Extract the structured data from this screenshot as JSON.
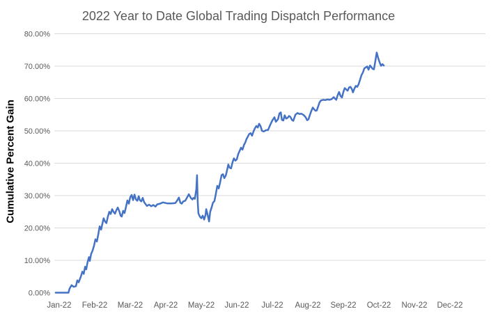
{
  "chart": {
    "title": "2022 Year to Date Global Trading Dispatch Performance",
    "y_axis_title": "Cumulative Percent Gain"
  },
  "colors": {
    "line": "#4472C4",
    "gridline": "#D9D9D9",
    "tick_text": "#595959",
    "title_text": "#595959",
    "y_title_text": "#000000",
    "background": "#FFFFFF"
  },
  "chart_data": {
    "type": "line",
    "title": "2022 Year to Date Global Trading Dispatch Performance",
    "xlabel": "",
    "ylabel": "Cumulative Percent Gain",
    "ylim": [
      0,
      80
    ],
    "y_tick_step": 10,
    "grid": "horizontal-only, no 0% baseline",
    "legend": "none",
    "x_tick_labels": [
      "Jan-22",
      "Feb-22",
      "Mar-22",
      "Apr-22",
      "May-22",
      "Jun-22",
      "Jul-22",
      "Aug-22",
      "Sep-22",
      "Oct-22",
      "Nov-22",
      "Dec-22"
    ],
    "y_tick_labels": [
      "0.00%",
      "10.00%",
      "20.00%",
      "30.00%",
      "40.00%",
      "50.00%",
      "60.00%",
      "70.00%",
      "80.00%"
    ],
    "x_unit": "months offset from Jan-22 tick",
    "y_unit": "cumulative percent gain",
    "series": [
      {
        "name": "Cumulative Percent Gain",
        "points": [
          [
            -0.1,
            0
          ],
          [
            0.26,
            0
          ],
          [
            0.29,
            1.2
          ],
          [
            0.35,
            2.3
          ],
          [
            0.41,
            1.8
          ],
          [
            0.47,
            2.0
          ],
          [
            0.51,
            3.8
          ],
          [
            0.55,
            3.2
          ],
          [
            0.61,
            5.0
          ],
          [
            0.65,
            6.5
          ],
          [
            0.69,
            5.8
          ],
          [
            0.73,
            8.0
          ],
          [
            0.76,
            7.2
          ],
          [
            0.8,
            9.5
          ],
          [
            0.84,
            11.0
          ],
          [
            0.86,
            9.8
          ],
          [
            0.9,
            12.0
          ],
          [
            0.94,
            13.0
          ],
          [
            0.98,
            14.5
          ],
          [
            1.02,
            16.5
          ],
          [
            1.06,
            15.8
          ],
          [
            1.1,
            18.0
          ],
          [
            1.14,
            20.5
          ],
          [
            1.18,
            19.5
          ],
          [
            1.22,
            21.5
          ],
          [
            1.25,
            23.0
          ],
          [
            1.29,
            22.0
          ],
          [
            1.33,
            21.5
          ],
          [
            1.37,
            23.5
          ],
          [
            1.41,
            25.0
          ],
          [
            1.45,
            24.3
          ],
          [
            1.49,
            25.8
          ],
          [
            1.53,
            25.0
          ],
          [
            1.57,
            24.4
          ],
          [
            1.61,
            25.5
          ],
          [
            1.65,
            26.3
          ],
          [
            1.69,
            25.2
          ],
          [
            1.73,
            23.8
          ],
          [
            1.76,
            23.5
          ],
          [
            1.8,
            25.3
          ],
          [
            1.84,
            24.6
          ],
          [
            1.88,
            26.5
          ],
          [
            1.92,
            28.5
          ],
          [
            1.96,
            27.5
          ],
          [
            2.0,
            29.5
          ],
          [
            2.04,
            30.2
          ],
          [
            2.08,
            28.6
          ],
          [
            2.12,
            30.3
          ],
          [
            2.16,
            28.8
          ],
          [
            2.2,
            28.4
          ],
          [
            2.24,
            29.8
          ],
          [
            2.27,
            28.6
          ],
          [
            2.31,
            28.2
          ],
          [
            2.35,
            29.3
          ],
          [
            2.39,
            28.0
          ],
          [
            2.43,
            27.4
          ],
          [
            2.47,
            26.8
          ],
          [
            2.53,
            27.2
          ],
          [
            2.59,
            26.7
          ],
          [
            2.65,
            27.1
          ],
          [
            2.71,
            26.6
          ],
          [
            2.76,
            27.3
          ],
          [
            2.84,
            27.5
          ],
          [
            2.92,
            27.9
          ],
          [
            3.04,
            27.6
          ],
          [
            3.16,
            27.6
          ],
          [
            3.27,
            27.7
          ],
          [
            3.33,
            28.6
          ],
          [
            3.37,
            29.4
          ],
          [
            3.41,
            27.8
          ],
          [
            3.45,
            27.5
          ],
          [
            3.49,
            28.2
          ],
          [
            3.55,
            28.4
          ],
          [
            3.61,
            29.6
          ],
          [
            3.65,
            30.4
          ],
          [
            3.71,
            29.2
          ],
          [
            3.75,
            28.8
          ],
          [
            3.78,
            29.3
          ],
          [
            3.82,
            29.0
          ],
          [
            3.86,
            32.0
          ],
          [
            3.88,
            36.3
          ],
          [
            3.9,
            28.0
          ],
          [
            3.92,
            24.5
          ],
          [
            3.96,
            23.5
          ],
          [
            4.0,
            23.0
          ],
          [
            4.04,
            23.8
          ],
          [
            4.08,
            22.6
          ],
          [
            4.12,
            24.0
          ],
          [
            4.14,
            25.8
          ],
          [
            4.18,
            24.0
          ],
          [
            4.22,
            22.0
          ],
          [
            4.25,
            25.0
          ],
          [
            4.29,
            26.3
          ],
          [
            4.33,
            27.8
          ],
          [
            4.37,
            28.3
          ],
          [
            4.41,
            30.5
          ],
          [
            4.45,
            33.0
          ],
          [
            4.49,
            32.2
          ],
          [
            4.53,
            34.0
          ],
          [
            4.57,
            36.3
          ],
          [
            4.61,
            36.6
          ],
          [
            4.65,
            35.4
          ],
          [
            4.69,
            36.2
          ],
          [
            4.73,
            38.0
          ],
          [
            4.76,
            39.6
          ],
          [
            4.8,
            38.6
          ],
          [
            4.84,
            38.4
          ],
          [
            4.88,
            40.3
          ],
          [
            4.92,
            41.5
          ],
          [
            4.96,
            40.8
          ],
          [
            5.0,
            41.2
          ],
          [
            5.04,
            42.8
          ],
          [
            5.08,
            43.8
          ],
          [
            5.12,
            44.8
          ],
          [
            5.16,
            44.2
          ],
          [
            5.2,
            45.6
          ],
          [
            5.24,
            46.4
          ],
          [
            5.27,
            47.4
          ],
          [
            5.31,
            48.2
          ],
          [
            5.35,
            49.0
          ],
          [
            5.39,
            49.3
          ],
          [
            5.43,
            48.5
          ],
          [
            5.47,
            49.8
          ],
          [
            5.51,
            50.8
          ],
          [
            5.55,
            51.5
          ],
          [
            5.59,
            51.0
          ],
          [
            5.63,
            52.2
          ],
          [
            5.67,
            51.4
          ],
          [
            5.71,
            50.0
          ],
          [
            5.76,
            49.8
          ],
          [
            5.82,
            50.2
          ],
          [
            5.88,
            50.3
          ],
          [
            5.94,
            51.8
          ],
          [
            6.0,
            53.2
          ],
          [
            6.06,
            54.2
          ],
          [
            6.1,
            52.8
          ],
          [
            6.16,
            53.6
          ],
          [
            6.2,
            55.4
          ],
          [
            6.24,
            55.7
          ],
          [
            6.27,
            53.4
          ],
          [
            6.31,
            53.2
          ],
          [
            6.35,
            54.8
          ],
          [
            6.39,
            53.8
          ],
          [
            6.43,
            54.0
          ],
          [
            6.47,
            54.6
          ],
          [
            6.51,
            54.3
          ],
          [
            6.55,
            53.4
          ],
          [
            6.59,
            53.1
          ],
          [
            6.65,
            55.0
          ],
          [
            6.71,
            55.5
          ],
          [
            6.76,
            55.2
          ],
          [
            6.82,
            55.3
          ],
          [
            6.88,
            54.9
          ],
          [
            6.94,
            54.2
          ],
          [
            6.98,
            53.3
          ],
          [
            7.02,
            53.6
          ],
          [
            7.06,
            55.0
          ],
          [
            7.1,
            56.2
          ],
          [
            7.14,
            57.2
          ],
          [
            7.18,
            56.6
          ],
          [
            7.22,
            56.2
          ],
          [
            7.25,
            56.3
          ],
          [
            7.29,
            57.5
          ],
          [
            7.33,
            58.8
          ],
          [
            7.37,
            59.4
          ],
          [
            7.43,
            59.6
          ],
          [
            7.49,
            59.5
          ],
          [
            7.55,
            59.7
          ],
          [
            7.61,
            59.6
          ],
          [
            7.67,
            59.8
          ],
          [
            7.73,
            60.4
          ],
          [
            7.76,
            60.0
          ],
          [
            7.8,
            59.6
          ],
          [
            7.84,
            61.0
          ],
          [
            7.88,
            62.0
          ],
          [
            7.92,
            60.8
          ],
          [
            7.96,
            60.3
          ],
          [
            8.0,
            62.0
          ],
          [
            8.04,
            63.2
          ],
          [
            8.08,
            62.8
          ],
          [
            8.12,
            62.4
          ],
          [
            8.16,
            63.4
          ],
          [
            8.2,
            63.6
          ],
          [
            8.24,
            62.9
          ],
          [
            8.27,
            61.9
          ],
          [
            8.31,
            63.0
          ],
          [
            8.35,
            63.9
          ],
          [
            8.39,
            63.6
          ],
          [
            8.43,
            64.4
          ],
          [
            8.47,
            65.8
          ],
          [
            8.51,
            67.2
          ],
          [
            8.55,
            68.0
          ],
          [
            8.59,
            69.3
          ],
          [
            8.63,
            69.6
          ],
          [
            8.67,
            69.9
          ],
          [
            8.71,
            68.9
          ],
          [
            8.75,
            70.2
          ],
          [
            8.78,
            69.8
          ],
          [
            8.82,
            69.2
          ],
          [
            8.86,
            69.0
          ],
          [
            8.9,
            71.5
          ],
          [
            8.94,
            74.2
          ],
          [
            8.98,
            72.5
          ],
          [
            9.02,
            71.2
          ],
          [
            9.06,
            70.1
          ],
          [
            9.1,
            70.6
          ],
          [
            9.14,
            70.2
          ]
        ]
      }
    ]
  }
}
